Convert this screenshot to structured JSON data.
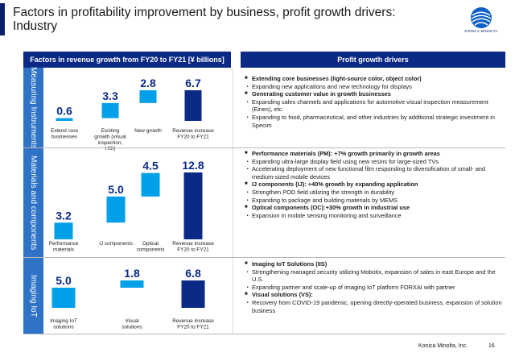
{
  "title": "Factors in profitability improvement by business, profit growth drivers: Industry",
  "brand": {
    "logo_text": "KONICA MINOLTA",
    "footer": "Konica Minolta, Inc.",
    "page_number": "16"
  },
  "colors": {
    "header": "#0b2a86",
    "row_label": "#2f73c6",
    "bar": "#00a0e9",
    "total_bar": "#0b2a86",
    "value_text": "#0b2a86"
  },
  "headers": {
    "left": "Factors in revenue growth from FY20 to FY21 [¥ billions]",
    "right": "Profit growth drivers"
  },
  "rows": [
    {
      "label": "Measuring Instruments",
      "chart_labels": {
        "values": [
          "0.6",
          "3.3",
          "2.8",
          "6.7"
        ],
        "categories": [
          "Extend core businesses",
          "Existing growth (visual inspection, HSI)",
          "New growth",
          "Revenue increase FY20 to FY21"
        ]
      },
      "notes": [
        {
          "type": "heading",
          "text": "Extending core businesses (light-source color, object color)"
        },
        {
          "type": "item",
          "text": "Expanding new applications and new technology for displays"
        },
        {
          "type": "heading",
          "text": "Generating customer value in growth businesses"
        },
        {
          "type": "item",
          "text": "Expanding sales channels and applications for automotive visual inspection measurement (Eines), etc."
        },
        {
          "type": "item",
          "text": "Expanding to food, pharmaceutical, and other industries by additional strategic investment in Specim"
        }
      ]
    },
    {
      "label": "Materials and components",
      "chart_labels": {
        "values": [
          "3.2",
          "5.0",
          "4.5",
          "12.8"
        ],
        "categories": [
          "Performance materials",
          "IJ components",
          "Optical components",
          "Revenue increase FY20 to FY21"
        ]
      },
      "notes": [
        {
          "type": "heading",
          "text": "Performance materials (PM): +7% growth primarily in growth areas"
        },
        {
          "type": "item",
          "text": "Expanding ultra-large display field using new resins for large-sized TVs"
        },
        {
          "type": "item",
          "text": "Accelerating deployment of new functional film responding to diversification of small- and medium-sized mobile devices"
        },
        {
          "type": "heading",
          "text": "IJ components (IJ): +40% growth by expanding application"
        },
        {
          "type": "item",
          "text": "Strengthen POD field utilizing the strength in durability"
        },
        {
          "type": "item",
          "text": "Expanding to package and building materials by MEMS"
        },
        {
          "type": "heading",
          "text": "Optical components (OC):+30% growth in industrial use"
        },
        {
          "type": "item",
          "text": "Expansion in mobile sensing monitoring and surveillance"
        }
      ]
    },
    {
      "label": "Imaging IoT",
      "chart_labels": {
        "values": [
          "5.0",
          "1.8",
          "6.8"
        ],
        "categories": [
          "Imaging IoT solutions",
          "Visual solutions",
          "Revenue increase FY20 to FY21"
        ]
      },
      "notes": [
        {
          "type": "heading",
          "text": "Imaging IoT Solutions (IIS)"
        },
        {
          "type": "item",
          "text": "Strengthening managed security utilizing Mobotix, expansion of sales in east Europe and the U.S."
        },
        {
          "type": "item",
          "text": "Expanding partner and scale-up of imaging IoT platform FORXAI with partner"
        },
        {
          "type": "heading",
          "text": "Visual solutions (VS):"
        },
        {
          "type": "item",
          "text": "Recovery from COVID-19 pandemic, opening directly-operated business, expansion of solution business"
        }
      ]
    }
  ],
  "chart_data": [
    {
      "type": "bar",
      "title": "",
      "categories": [
        "Extend core businesses",
        "Existing growth (visual inspection, HSI)",
        "New growth",
        "Revenue increase FY20 to FY21"
      ],
      "values": [
        0.6,
        3.3,
        2.8,
        6.7
      ],
      "waterfall": true,
      "unit": "¥ billions"
    },
    {
      "type": "bar",
      "title": "",
      "categories": [
        "Performance materials",
        "IJ components",
        "Optical components",
        "Revenue increase FY20 to FY21"
      ],
      "values": [
        3.2,
        5.0,
        4.5,
        12.8
      ],
      "waterfall": true,
      "unit": "¥ billions"
    },
    {
      "type": "bar",
      "title": "",
      "categories": [
        "Imaging IoT solutions",
        "Visual solutions",
        "Revenue increase FY20 to FY21"
      ],
      "values": [
        5.0,
        1.8,
        6.8
      ],
      "waterfall": true,
      "unit": "¥ billions"
    }
  ]
}
